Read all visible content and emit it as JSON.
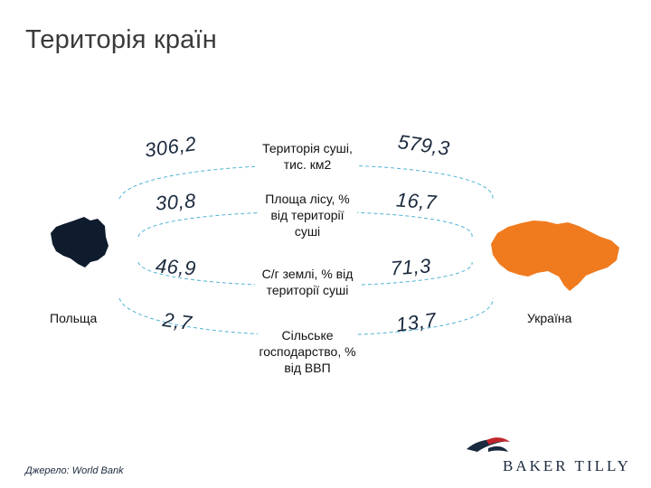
{
  "slide": {
    "title": "Територія країн",
    "source": "Джерело: World Bank"
  },
  "countries": {
    "left": "Польща",
    "right": "Україна"
  },
  "metrics": [
    {
      "label": "Територія суші, тис. км2",
      "poland": "306,2",
      "ukraine": "579,3"
    },
    {
      "label": "Площа лісу, % від території суші",
      "poland": "30,8",
      "ukraine": "16,7"
    },
    {
      "label": "С/г землі, % від території суші",
      "poland": "46,9",
      "ukraine": "71,3"
    },
    {
      "label": "Сільське господарство, % від ВВП",
      "poland": "2,7",
      "ukraine": "13,7"
    }
  ],
  "colors": {
    "poland_map": "#0f1c2e",
    "ukraine_map": "#f07a1e",
    "connector": "#4fb4d4",
    "logo_red": "#c0262d"
  },
  "logo": {
    "text": "BAKER TILLY"
  }
}
